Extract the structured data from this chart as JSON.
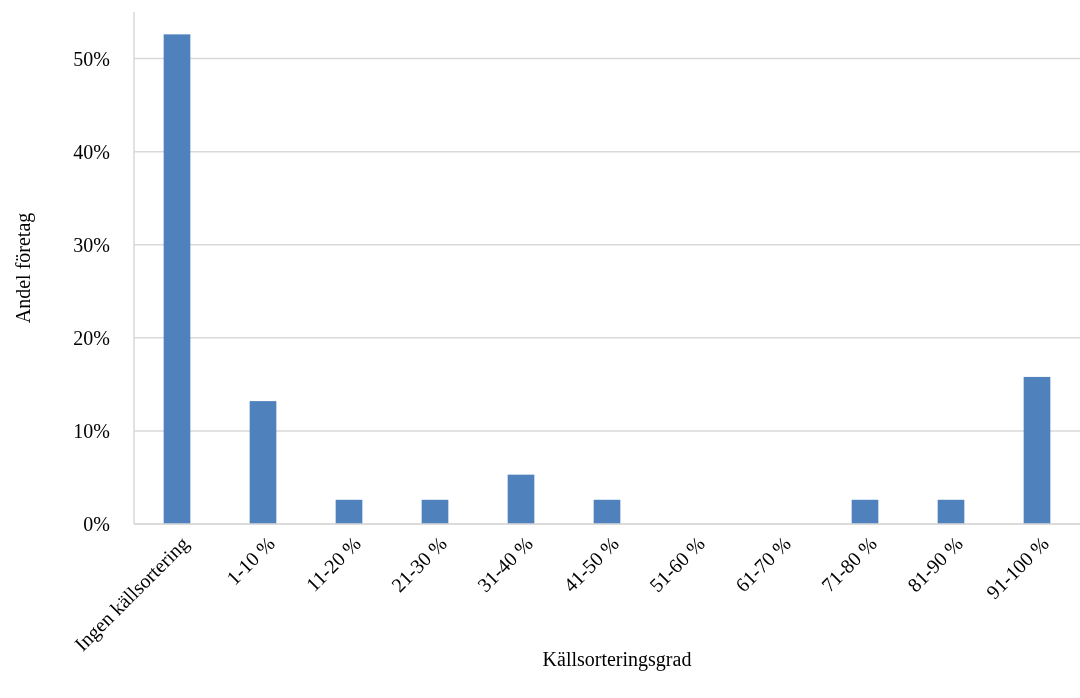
{
  "chart_data": {
    "type": "bar",
    "xlabel": "Källsorteringsgrad",
    "ylabel": "Andel företag",
    "categories": [
      "Ingen källsortering",
      "1-10 %",
      "11-20 %",
      "21-30 %",
      "31-40 %",
      "41-50 %",
      "51-60 %",
      "61-70 %",
      "71-80 %",
      "81-90 %",
      "91-100 %"
    ],
    "values": [
      52.6,
      13.2,
      2.6,
      2.6,
      5.3,
      2.6,
      0,
      0,
      2.6,
      2.6,
      15.8
    ],
    "color": "#4f81bd",
    "ylim": [
      0,
      55
    ],
    "yticks": [
      {
        "value": 0,
        "label": "0%"
      },
      {
        "value": 10,
        "label": "10%"
      },
      {
        "value": 20,
        "label": "20%"
      },
      {
        "value": 30,
        "label": "30%"
      },
      {
        "value": 40,
        "label": "40%"
      },
      {
        "value": 50,
        "label": "50%"
      }
    ],
    "grid": "y"
  }
}
